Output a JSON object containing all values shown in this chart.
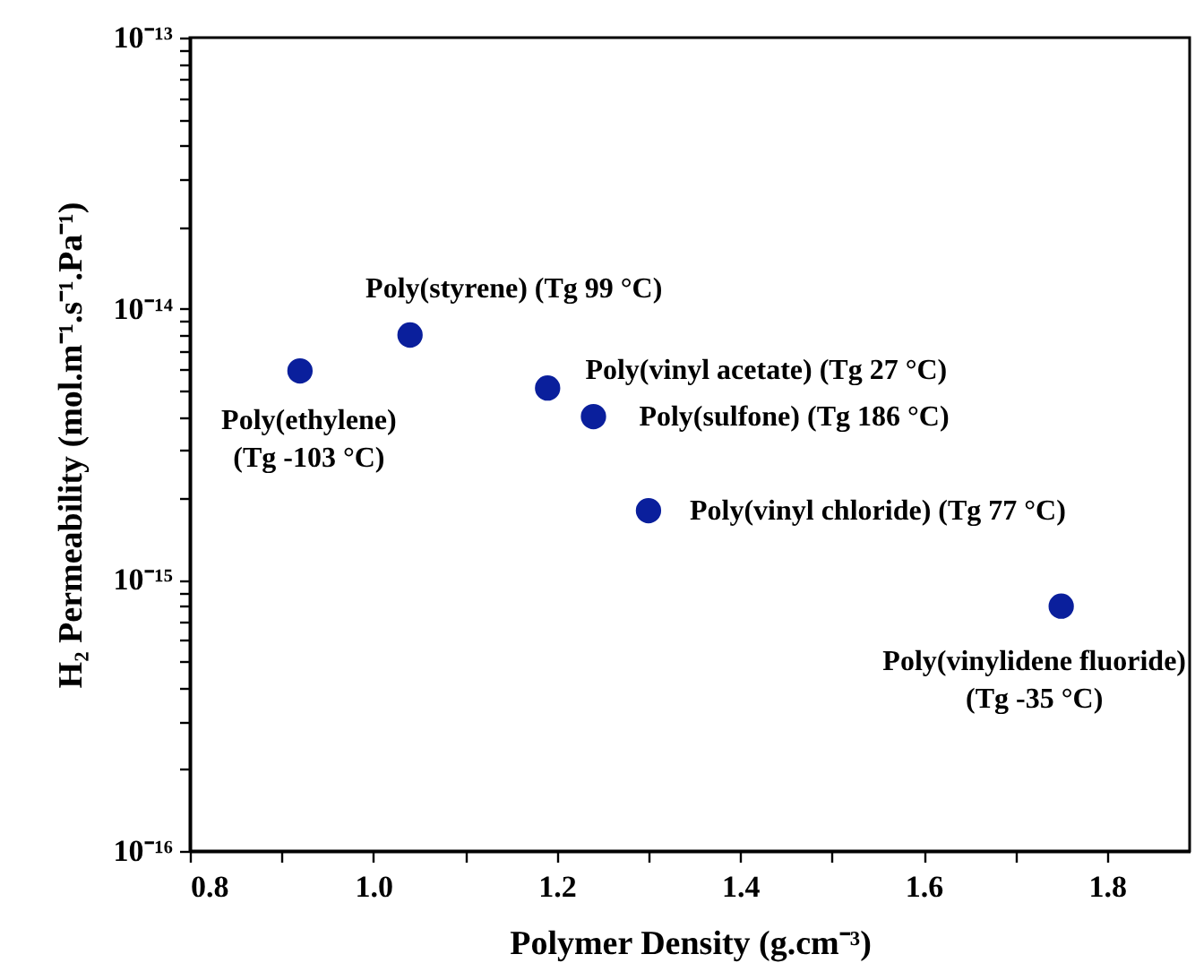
{
  "chart_data": {
    "type": "scatter",
    "xlabel": "Polymer Density (g.cm⁻³)",
    "ylabel": "H₂ Permeability (mol.m⁻¹.s⁻¹.Pa⁻¹)",
    "x": [
      0.92,
      1.04,
      1.19,
      1.24,
      1.3,
      1.75
    ],
    "series": [
      {
        "color": "#0a1f9c",
        "values": [
          5.9e-15,
          8e-15,
          5.1e-15,
          4e-15,
          1.8e-15,
          8e-16
        ]
      }
    ],
    "marker": "circle",
    "log": "y",
    "grid": false,
    "xlim": [
      0.8,
      1.89
    ],
    "xticks": [
      0.8,
      {
        "value": 0.9,
        "label": null
      },
      {
        "value": 1.0,
        "label": "1.0"
      },
      {
        "value": 1.1,
        "label": null
      },
      1.2,
      {
        "value": 1.3,
        "label": null
      },
      1.4,
      {
        "value": 1.5,
        "label": null
      },
      1.6,
      {
        "value": 1.7,
        "label": null
      },
      1.8
    ],
    "ylim": [
      1e-16,
      1e-13
    ],
    "yticks": [
      {
        "value": 1e-16,
        "label": "10⁻¹⁶"
      },
      {
        "value": 2e-16,
        "label": null
      },
      {
        "value": 3e-16,
        "label": null
      },
      {
        "value": 4e-16,
        "label": null
      },
      {
        "value": 5e-16,
        "label": null
      },
      {
        "value": 6e-16,
        "label": null
      },
      {
        "value": 7e-16,
        "label": null
      },
      {
        "value": 8e-16,
        "label": null
      },
      {
        "value": 9e-16,
        "label": null
      },
      {
        "value": 1e-15,
        "label": "10⁻¹⁵"
      },
      {
        "value": 2e-15,
        "label": null
      },
      {
        "value": 3e-15,
        "label": null
      },
      {
        "value": 4e-15,
        "label": null
      },
      {
        "value": 5e-15,
        "label": null
      },
      {
        "value": 6e-15,
        "label": null
      },
      {
        "value": 7e-15,
        "label": null
      },
      {
        "value": 8e-15,
        "label": null
      },
      {
        "value": 9e-15,
        "label": null
      },
      {
        "value": 1e-14,
        "label": "10⁻¹⁴"
      },
      {
        "value": 2e-14,
        "label": null
      },
      {
        "value": 3e-14,
        "label": null
      },
      {
        "value": 4e-14,
        "label": null
      },
      {
        "value": 5e-14,
        "label": null
      },
      {
        "value": 6e-14,
        "label": null
      },
      {
        "value": 7e-14,
        "label": null
      },
      {
        "value": 8e-14,
        "label": null
      },
      {
        "value": 9e-14,
        "label": null
      },
      {
        "value": 1e-13,
        "label": "10⁻¹³"
      }
    ],
    "annotations": [
      {
        "text": "Poly(ethylene)\n(Tg -103 °C)",
        "x": 0.92,
        "y": 5.9e-15
      },
      {
        "text": "Poly(styrene) (Tg 99 °C)",
        "x": 1.04,
        "y": 8e-15
      },
      {
        "text": "Poly(vinyl acetate) (Tg 27 °C)",
        "x": 1.19,
        "y": 5.1e-15
      },
      {
        "text": "Poly(sulfone) (Tg 186 °C)",
        "x": 1.24,
        "y": 4e-15
      },
      {
        "text": "Poly(vinyl chloride) (Tg 77 °C)",
        "x": 1.3,
        "y": 1.8e-15
      },
      {
        "text": "Poly(vinylidene fluoride)\n(Tg -35 °C)",
        "x": 1.75,
        "y": 8e-16
      }
    ]
  }
}
